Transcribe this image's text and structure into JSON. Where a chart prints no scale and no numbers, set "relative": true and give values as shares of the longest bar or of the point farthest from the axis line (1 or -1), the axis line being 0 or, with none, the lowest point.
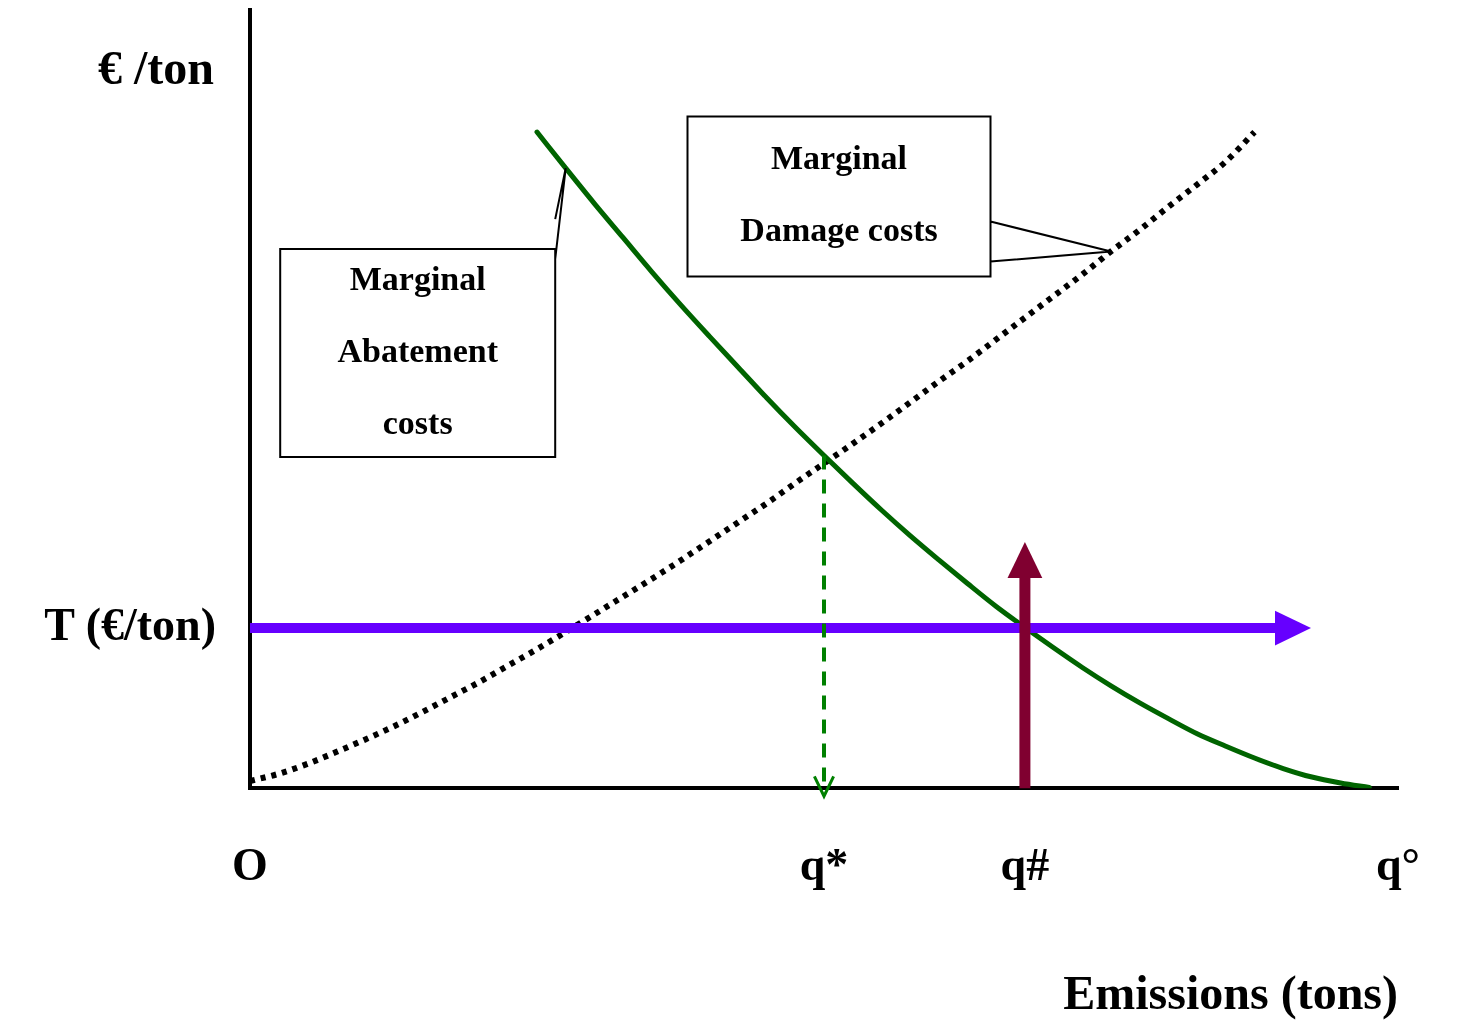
{
  "chart_data": {
    "type": "line",
    "relative": true,
    "ylabel": "€ /ton",
    "xlabel": "Emissions (tons)",
    "categories": [
      "O",
      null,
      null,
      null,
      null,
      null,
      null,
      null,
      null,
      null,
      null,
      null,
      null,
      null,
      null,
      null,
      null,
      null,
      null,
      null,
      "q*",
      null,
      null,
      null,
      null,
      null,
      null,
      "q#",
      null,
      null,
      null,
      null,
      null,
      null,
      null,
      null,
      null,
      null,
      null,
      null,
      "q°"
    ],
    "series": [
      {
        "color": "#006400",
        "line_style": "solid",
        "values": [
          null,
          null,
          null,
          null,
          null,
          null,
          null,
          null,
          null,
          null,
          1.0,
          0.945,
          0.891,
          0.839,
          0.787,
          0.737,
          0.689,
          0.642,
          0.595,
          0.55,
          0.507,
          0.465,
          0.424,
          0.385,
          0.348,
          0.312,
          0.277,
          0.245,
          0.214,
          0.184,
          0.156,
          0.13,
          0.106,
          0.083,
          0.064,
          0.046,
          0.03,
          0.017,
          0.008,
          0.001,
          null
        ]
      },
      {
        "color": "#000000",
        "line_style": "dotted",
        "values": [
          0.011,
          0.022,
          0.037,
          0.055,
          0.074,
          0.094,
          0.116,
          0.139,
          0.162,
          0.187,
          0.212,
          0.238,
          0.265,
          0.292,
          0.319,
          0.347,
          0.376,
          0.405,
          0.434,
          0.465,
          0.495,
          0.525,
          0.556,
          0.588,
          0.62,
          0.651,
          0.684,
          0.717,
          0.75,
          0.783,
          0.818,
          0.851,
          0.886,
          0.92,
          0.955,
          1.0,
          null,
          null,
          null,
          null,
          null
        ]
      }
    ],
    "ref_lines": [
      {
        "axis": "y",
        "value": 0.244,
        "label": "T (€/ton)",
        "color": "#6600ff",
        "line_style": "solid"
      },
      {
        "axis": "x",
        "value": "q*",
        "color": "#008000",
        "line_style": "dashed"
      },
      {
        "axis": "x",
        "value": "q#",
        "color": "#800030",
        "line_style": "solid"
      }
    ],
    "annotations": [
      "Marginal Abatement costs",
      "Marginal Damage costs"
    ],
    "marker": "none",
    "grid": false,
    "legend": false
  }
}
